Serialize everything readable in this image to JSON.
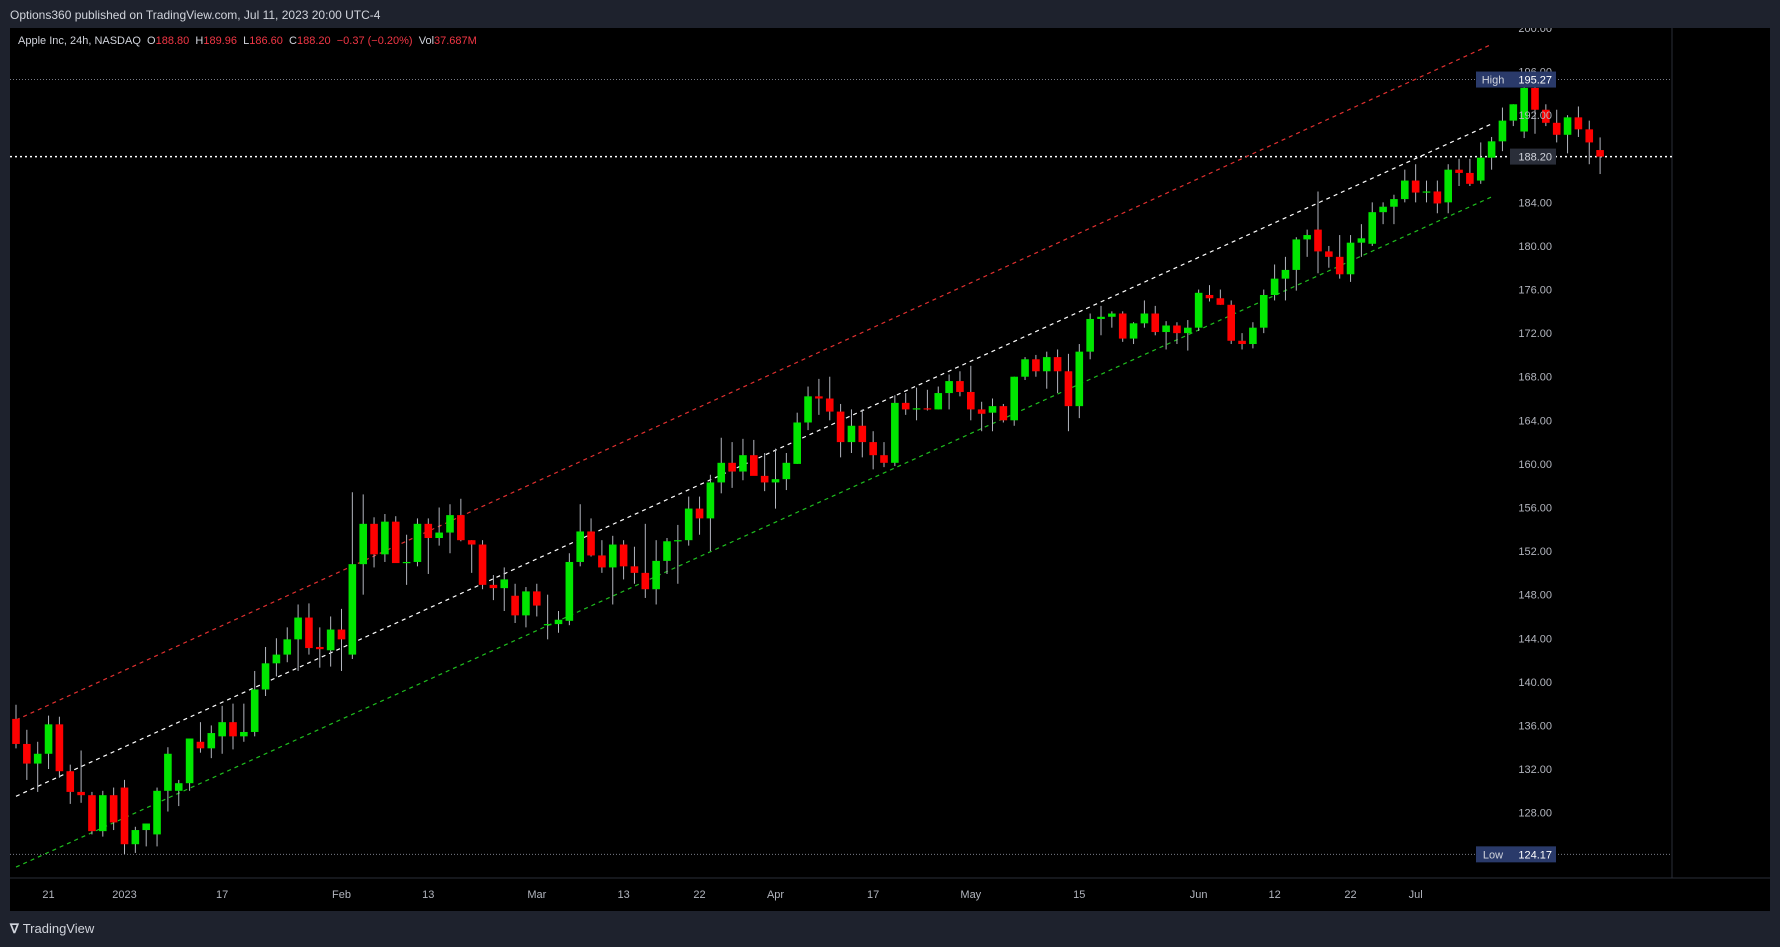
{
  "header": {
    "published_by": "Options360 published on TradingView.com, Jul 11, 2023 20:00 UTC-4"
  },
  "symbol": {
    "name": "Apple Inc, 24h, NASDAQ",
    "o_label": "O",
    "o": "188.80",
    "h_label": "H",
    "h": "189.96",
    "l_label": "L",
    "l": "186.60",
    "c_label": "C",
    "c": "188.20",
    "change": "−0.37 (−0.20%)",
    "vol_label": "Vol",
    "vol": "37.687M"
  },
  "footer": {
    "brand": "TradingView"
  },
  "colors": {
    "up": "#00e600",
    "down": "#ff0000",
    "background": "#000000",
    "panel": "#1e222d",
    "axis_text": "#b2b5be",
    "channel_upper": "#e03030",
    "channel_mid": "#ffffff",
    "channel_lower": "#1fbf1f"
  },
  "chart_data": {
    "type": "candlestick",
    "title": "Apple Inc, 24h, NASDAQ",
    "y_ticks": [
      "200.00",
      "196.00",
      "192.00",
      "188.00",
      "184.00",
      "180.00",
      "176.00",
      "172.00",
      "168.00",
      "164.00",
      "160.00",
      "156.00",
      "152.00",
      "148.00",
      "144.00",
      "140.00",
      "136.00",
      "132.00",
      "128.00"
    ],
    "ylim": [
      122,
      200
    ],
    "x_tick_labels": [
      {
        "label": "21",
        "bar": 3
      },
      {
        "label": "2023",
        "bar": 10
      },
      {
        "label": "17",
        "bar": 19
      },
      {
        "label": "Feb",
        "bar": 30
      },
      {
        "label": "13",
        "bar": 38
      },
      {
        "label": "Mar",
        "bar": 48
      },
      {
        "label": "13",
        "bar": 56
      },
      {
        "label": "22",
        "bar": 63
      },
      {
        "label": "Apr",
        "bar": 70
      },
      {
        "label": "17",
        "bar": 79
      },
      {
        "label": "May",
        "bar": 88
      },
      {
        "label": "15",
        "bar": 98
      },
      {
        "label": "Jun",
        "bar": 109
      },
      {
        "label": "12",
        "bar": 116
      },
      {
        "label": "22",
        "bar": 123
      },
      {
        "label": "Jul",
        "bar": 129
      }
    ],
    "price_labels": {
      "high": {
        "label": "High",
        "value": "195.27"
      },
      "current": {
        "value": "188.20"
      },
      "low": {
        "label": "Low",
        "value": "124.17"
      }
    },
    "channel": {
      "upper": {
        "start_bar": 0,
        "start": 136.5,
        "end_bar": 136,
        "end": 198.5
      },
      "middle": {
        "start_bar": 0,
        "start": 129.5,
        "end_bar": 136,
        "end": 191.2
      },
      "lower": {
        "start_bar": 0,
        "start": 123.0,
        "end_bar": 136,
        "end": 184.5
      }
    },
    "candles": [
      [
        136.6,
        137.9,
        133.9,
        134.3
      ],
      [
        134.3,
        135.6,
        131.0,
        132.5
      ],
      [
        132.5,
        134.5,
        129.9,
        133.4
      ],
      [
        133.4,
        136.9,
        132.0,
        136.1
      ],
      [
        136.1,
        136.8,
        131.2,
        131.8
      ],
      [
        131.8,
        132.4,
        128.8,
        129.9
      ],
      [
        129.9,
        133.7,
        128.9,
        129.6
      ],
      [
        129.6,
        129.9,
        126.0,
        126.3
      ],
      [
        126.3,
        130.0,
        125.8,
        129.6
      ],
      [
        129.6,
        130.3,
        126.4,
        127.1
      ],
      [
        130.3,
        131.0,
        124.2,
        125.1
      ],
      [
        125.1,
        126.7,
        124.3,
        126.4
      ],
      [
        126.4,
        127.0,
        124.9,
        127.0
      ],
      [
        126.0,
        130.3,
        124.9,
        130.0
      ],
      [
        130.0,
        134.0,
        128.1,
        133.4
      ],
      [
        130.0,
        131.0,
        128.6,
        130.7
      ],
      [
        130.7,
        134.4,
        130.0,
        134.8
      ],
      [
        134.5,
        136.3,
        133.5,
        133.9
      ],
      [
        133.9,
        136.0,
        133.0,
        135.3
      ],
      [
        135.0,
        137.8,
        133.4,
        136.3
      ],
      [
        136.3,
        138.0,
        133.8,
        135.0
      ],
      [
        135.0,
        138.0,
        134.5,
        135.4
      ],
      [
        135.4,
        141.0,
        135.0,
        139.3
      ],
      [
        139.3,
        143.2,
        138.7,
        141.7
      ],
      [
        141.7,
        144.0,
        140.5,
        142.5
      ],
      [
        142.5,
        145.0,
        141.8,
        143.9
      ],
      [
        143.9,
        147.1,
        141.0,
        145.9
      ],
      [
        145.9,
        147.2,
        142.5,
        143.1
      ],
      [
        143.2,
        145.0,
        141.3,
        143.0
      ],
      [
        142.9,
        146.0,
        141.4,
        144.8
      ],
      [
        144.8,
        146.7,
        141.0,
        143.9
      ],
      [
        142.5,
        157.4,
        142.1,
        150.8
      ],
      [
        150.8,
        157.2,
        148.0,
        154.5
      ],
      [
        154.5,
        155.1,
        150.5,
        151.7
      ],
      [
        151.7,
        155.4,
        151.0,
        154.7
      ],
      [
        154.7,
        155.2,
        151.6,
        150.9
      ],
      [
        150.9,
        153.5,
        148.9,
        151.0
      ],
      [
        151.0,
        155.0,
        150.6,
        154.5
      ],
      [
        154.5,
        155.0,
        149.9,
        153.2
      ],
      [
        153.2,
        156.0,
        152.5,
        153.7
      ],
      [
        153.7,
        156.3,
        151.8,
        155.3
      ],
      [
        155.3,
        156.8,
        152.9,
        153.0
      ],
      [
        153.0,
        153.0,
        150.0,
        152.6
      ],
      [
        152.6,
        153.0,
        148.5,
        148.9
      ],
      [
        148.9,
        149.8,
        147.5,
        148.6
      ],
      [
        148.6,
        150.5,
        146.5,
        149.4
      ],
      [
        147.9,
        149.0,
        145.4,
        146.1
      ],
      [
        146.1,
        148.7,
        145.0,
        148.3
      ],
      [
        148.3,
        149.0,
        146.0,
        147.0
      ],
      [
        145.3,
        148.0,
        143.9,
        145.3
      ],
      [
        145.3,
        146.5,
        144.5,
        145.7
      ],
      [
        145.6,
        151.8,
        145.2,
        151.0
      ],
      [
        151.0,
        156.3,
        150.6,
        153.8
      ],
      [
        153.8,
        155.0,
        151.5,
        151.6
      ],
      [
        151.6,
        153.0,
        150.0,
        150.5
      ],
      [
        150.5,
        153.4,
        147.1,
        152.6
      ],
      [
        152.6,
        153.0,
        149.4,
        150.6
      ],
      [
        150.6,
        152.4,
        149.0,
        150.0
      ],
      [
        150.0,
        154.5,
        147.7,
        148.5
      ],
      [
        148.5,
        153.0,
        147.1,
        151.1
      ],
      [
        151.1,
        153.2,
        149.9,
        152.9
      ],
      [
        152.9,
        154.4,
        149.0,
        153.0
      ],
      [
        153.0,
        157.0,
        152.5,
        155.9
      ],
      [
        155.9,
        157.0,
        153.5,
        155.0
      ],
      [
        155.0,
        159.0,
        152.0,
        158.3
      ],
      [
        158.3,
        162.4,
        157.3,
        160.1
      ],
      [
        160.1,
        162.0,
        157.8,
        159.3
      ],
      [
        159.3,
        162.3,
        158.5,
        160.8
      ],
      [
        160.8,
        162.2,
        159.0,
        158.9
      ],
      [
        158.9,
        161.0,
        157.5,
        158.3
      ],
      [
        158.3,
        161.4,
        155.9,
        158.6
      ],
      [
        158.6,
        161.0,
        157.6,
        160.1
      ],
      [
        160.0,
        164.7,
        160.0,
        163.8
      ],
      [
        163.8,
        167.1,
        163.1,
        166.2
      ],
      [
        166.2,
        167.8,
        164.5,
        166.0
      ],
      [
        166.0,
        168.0,
        164.0,
        164.8
      ],
      [
        164.8,
        165.5,
        160.6,
        162.0
      ],
      [
        162.0,
        165.0,
        161.0,
        163.5
      ],
      [
        163.5,
        165.0,
        160.6,
        162.0
      ],
      [
        162.0,
        163.0,
        159.5,
        160.8
      ],
      [
        160.8,
        162.0,
        159.7,
        160.1
      ],
      [
        160.1,
        166.3,
        159.8,
        165.6
      ],
      [
        165.6,
        166.5,
        164.5,
        165.0
      ],
      [
        165.0,
        167.0,
        164.0,
        165.1
      ],
      [
        165.1,
        166.8,
        164.9,
        165.0
      ],
      [
        165.0,
        167.1,
        165.0,
        166.5
      ],
      [
        166.5,
        168.2,
        165.0,
        167.6
      ],
      [
        167.6,
        168.5,
        166.2,
        166.6
      ],
      [
        166.6,
        169.0,
        164.0,
        165.0
      ],
      [
        165.0,
        165.7,
        163.0,
        164.6
      ],
      [
        164.7,
        166.0,
        163.0,
        165.3
      ],
      [
        165.3,
        165.5,
        163.8,
        164.0
      ],
      [
        164.0,
        168.0,
        163.5,
        168.0
      ],
      [
        168.0,
        169.8,
        167.7,
        169.6
      ],
      [
        169.6,
        170.0,
        168.0,
        168.5
      ],
      [
        168.5,
        170.3,
        166.9,
        169.8
      ],
      [
        169.8,
        170.5,
        166.5,
        168.5
      ],
      [
        168.5,
        170.1,
        163.0,
        165.3
      ],
      [
        165.3,
        171.0,
        164.2,
        170.3
      ],
      [
        170.3,
        173.8,
        169.6,
        173.3
      ],
      [
        173.3,
        174.5,
        171.8,
        173.5
      ],
      [
        173.5,
        174.0,
        172.5,
        173.8
      ],
      [
        173.8,
        174.0,
        171.2,
        171.5
      ],
      [
        171.5,
        173.0,
        171.0,
        172.9
      ],
      [
        172.9,
        175.0,
        172.5,
        173.8
      ],
      [
        173.8,
        174.5,
        171.8,
        172.1
      ],
      [
        172.1,
        173.1,
        170.5,
        172.7
      ],
      [
        172.7,
        173.0,
        171.0,
        172.0
      ],
      [
        172.0,
        173.2,
        170.4,
        172.5
      ],
      [
        172.5,
        176.0,
        172.2,
        175.7
      ],
      [
        175.5,
        176.4,
        174.9,
        175.2
      ],
      [
        175.2,
        176.0,
        174.6,
        174.6
      ],
      [
        174.6,
        175.0,
        171.0,
        171.3
      ],
      [
        171.3,
        172.0,
        170.5,
        171.0
      ],
      [
        171.0,
        173.0,
        170.6,
        172.5
      ],
      [
        172.5,
        176.0,
        172.0,
        175.5
      ],
      [
        175.5,
        178.3,
        175.0,
        177.0
      ],
      [
        177.0,
        179.0,
        175.0,
        177.8
      ],
      [
        177.8,
        180.8,
        175.9,
        180.6
      ],
      [
        180.6,
        181.5,
        179.0,
        181.0
      ],
      [
        181.5,
        185.0,
        177.5,
        179.5
      ],
      [
        179.5,
        180.0,
        178.0,
        179.0
      ],
      [
        179.0,
        181.0,
        177.0,
        177.4
      ],
      [
        177.4,
        181.0,
        176.7,
        180.3
      ],
      [
        180.3,
        182.0,
        179.0,
        180.7
      ],
      [
        180.2,
        184.0,
        180.0,
        183.1
      ],
      [
        183.1,
        184.0,
        182.0,
        183.6
      ],
      [
        183.6,
        184.7,
        182.0,
        184.3
      ],
      [
        184.3,
        187.0,
        184.0,
        186.0
      ],
      [
        186.0,
        187.5,
        184.0,
        184.9
      ],
      [
        184.9,
        186.0,
        184.0,
        185.0
      ],
      [
        185.0,
        186.0,
        183.0,
        183.9
      ],
      [
        184.0,
        187.5,
        183.0,
        187.0
      ],
      [
        187.0,
        188.0,
        185.5,
        186.7
      ],
      [
        186.7,
        188.0,
        185.5,
        185.7
      ],
      [
        186.0,
        189.5,
        185.7,
        188.1
      ],
      [
        188.1,
        190.0,
        187.0,
        189.6
      ],
      [
        189.6,
        192.7,
        188.7,
        191.5
      ],
      [
        191.5,
        193.0,
        191.0,
        193.0
      ],
      [
        190.5,
        195.0,
        189.9,
        194.5
      ],
      [
        194.5,
        195.3,
        190.3,
        192.5
      ],
      [
        192.5,
        193.0,
        191.0,
        191.3
      ],
      [
        191.3,
        192.5,
        189.5,
        190.2
      ],
      [
        190.2,
        192.0,
        188.5,
        191.8
      ],
      [
        191.8,
        192.8,
        190.0,
        190.7
      ],
      [
        190.7,
        191.5,
        187.5,
        189.5
      ],
      [
        188.8,
        189.96,
        186.6,
        188.2
      ]
    ]
  }
}
